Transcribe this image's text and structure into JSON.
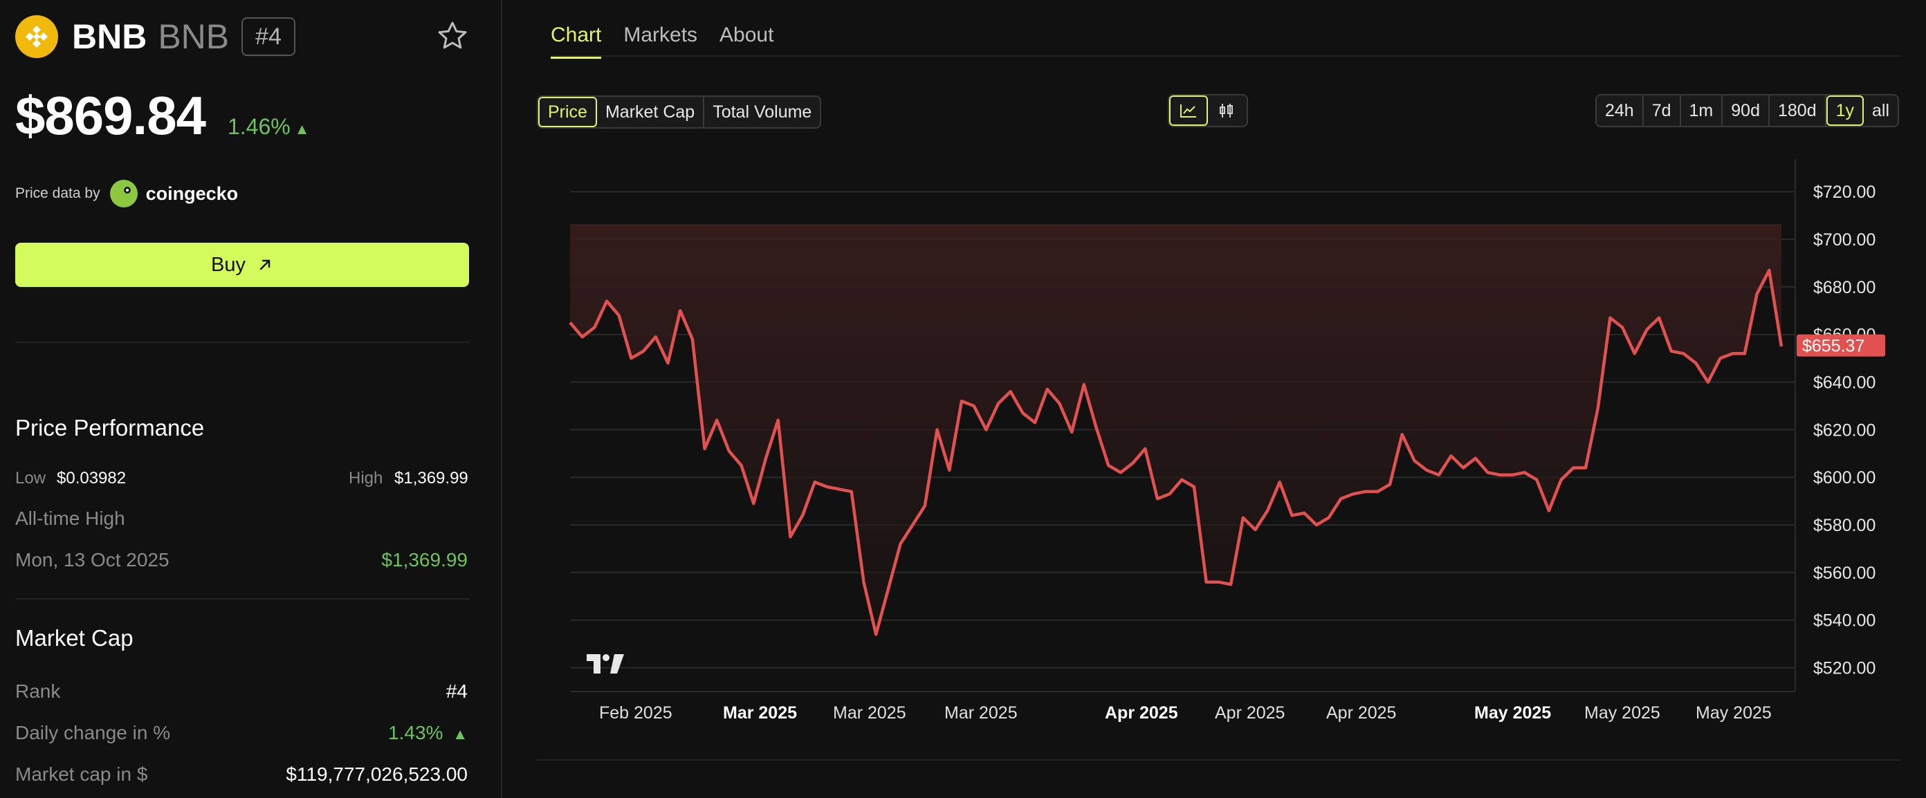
{
  "coin": {
    "name": "BNB",
    "symbol": "BNB",
    "rank_badge": "#4",
    "price": "$869.84",
    "change": "1.46%",
    "change_arrow": "▲",
    "logo_color": "#f0b90b"
  },
  "price_source": {
    "label": "Price data by",
    "provider": "coingecko"
  },
  "buy_button": {
    "label": "Buy",
    "icon": "arrow-up-right-icon"
  },
  "performance": {
    "title": "Price Performance",
    "low_label": "Low",
    "low_value": "$0.03982",
    "high_label": "High",
    "high_value": "$1,369.99",
    "ath_label": "All-time High",
    "ath_date": "Mon, 13 Oct 2025",
    "ath_value": "$1,369.99"
  },
  "market_cap": {
    "title": "Market Cap",
    "rank_label": "Rank",
    "rank_value": "#4",
    "daily_label": "Daily change in %",
    "daily_value": "1.43%",
    "daily_arrow": "▲",
    "cap_label": "Market cap in $",
    "cap_value": "$119,777,026,523.00"
  },
  "tabs": [
    {
      "label": "Chart",
      "active": true
    },
    {
      "label": "Markets",
      "active": false
    },
    {
      "label": "About",
      "active": false
    }
  ],
  "metric_buttons": [
    {
      "label": "Price",
      "active": true
    },
    {
      "label": "Market Cap",
      "active": false
    },
    {
      "label": "Total Volume",
      "active": false
    }
  ],
  "chart_style_buttons": [
    {
      "icon": "line-chart-icon",
      "active": true
    },
    {
      "icon": "candlestick-icon",
      "active": false
    }
  ],
  "range_buttons": [
    {
      "label": "24h",
      "active": false
    },
    {
      "label": "7d",
      "active": false
    },
    {
      "label": "1m",
      "active": false
    },
    {
      "label": "90d",
      "active": false
    },
    {
      "label": "180d",
      "active": false
    },
    {
      "label": "1y",
      "active": true
    },
    {
      "label": "all",
      "active": false
    }
  ],
  "colors": {
    "accent": "#e3f36a",
    "buy": "#d4fb5c",
    "up": "#6bc35a",
    "line": "#e0514f",
    "background": "#111111"
  },
  "chart_data": {
    "type": "area",
    "title": "",
    "xlabel": "",
    "ylabel": "",
    "ylim": [
      510,
      725
    ],
    "y_ticks": [
      "$720.00",
      "$700.00",
      "$680.00",
      "$660.00",
      "$640.00",
      "$620.00",
      "$600.00",
      "$580.00",
      "$560.00",
      "$540.00",
      "$520.00"
    ],
    "y_tick_values": [
      720,
      700,
      680,
      660,
      640,
      620,
      600,
      580,
      560,
      540,
      520
    ],
    "x_ticks": [
      {
        "label": "Feb 2025",
        "bold": false
      },
      {
        "label": "Mar 2025",
        "bold": true
      },
      {
        "label": "Mar 2025",
        "bold": false
      },
      {
        "label": "Mar 2025",
        "bold": false
      },
      {
        "label": "Apr 2025",
        "bold": true
      },
      {
        "label": "Apr 2025",
        "bold": false
      },
      {
        "label": "Apr 2025",
        "bold": false
      },
      {
        "label": "May 2025",
        "bold": true
      },
      {
        "label": "May 2025",
        "bold": false
      },
      {
        "label": "May 2025",
        "bold": false
      }
    ],
    "current_value_label": "$655.37",
    "current_value": 655.37,
    "reference_value": 706,
    "series": [
      {
        "values": [
          665,
          659,
          663,
          674,
          668,
          650,
          653,
          659,
          648,
          670,
          658,
          612,
          624,
          611,
          605,
          589,
          608,
          624,
          575,
          584,
          598,
          596,
          595,
          594,
          556,
          534,
          553,
          572,
          580,
          588,
          620,
          603,
          632,
          630,
          620,
          631,
          636,
          627,
          623,
          637,
          631,
          619,
          639,
          621,
          605,
          602,
          606,
          612,
          591,
          593,
          599,
          596,
          556,
          556,
          555,
          583,
          578,
          586,
          598,
          584,
          585,
          580,
          583,
          591,
          593,
          594,
          594,
          597,
          618,
          607,
          603,
          601,
          609,
          604,
          608,
          602,
          601,
          601,
          602,
          599,
          586,
          599,
          604,
          604,
          629,
          667,
          663,
          652,
          662,
          667,
          653,
          652,
          648,
          640,
          650,
          652,
          652,
          677,
          687,
          655
        ]
      }
    ],
    "watermark": "TV"
  }
}
